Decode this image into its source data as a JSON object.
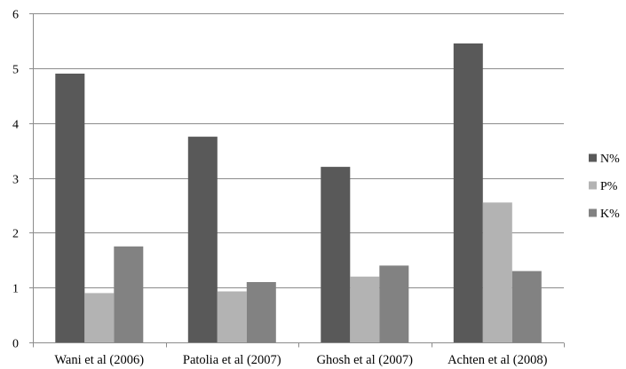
{
  "chart_data": {
    "type": "bar",
    "title": "",
    "xlabel": "",
    "ylabel": "",
    "ylim": [
      0,
      6
    ],
    "yticks": [
      0,
      1,
      2,
      3,
      4,
      5,
      6
    ],
    "grid": true,
    "legend_position": "right",
    "categories": [
      "Wani et al (2006)",
      "Patolia et al (2007)",
      "Ghosh et al (2007)",
      "Achten et al (2008)"
    ],
    "series": [
      {
        "name": "N%",
        "color": "#595959",
        "values": [
          4.9,
          3.75,
          3.2,
          5.45
        ]
      },
      {
        "name": "P%",
        "color": "#b3b3b3",
        "values": [
          0.9,
          0.93,
          1.2,
          2.55
        ]
      },
      {
        "name": "K%",
        "color": "#828282",
        "values": [
          1.75,
          1.1,
          1.4,
          1.3
        ]
      }
    ]
  }
}
